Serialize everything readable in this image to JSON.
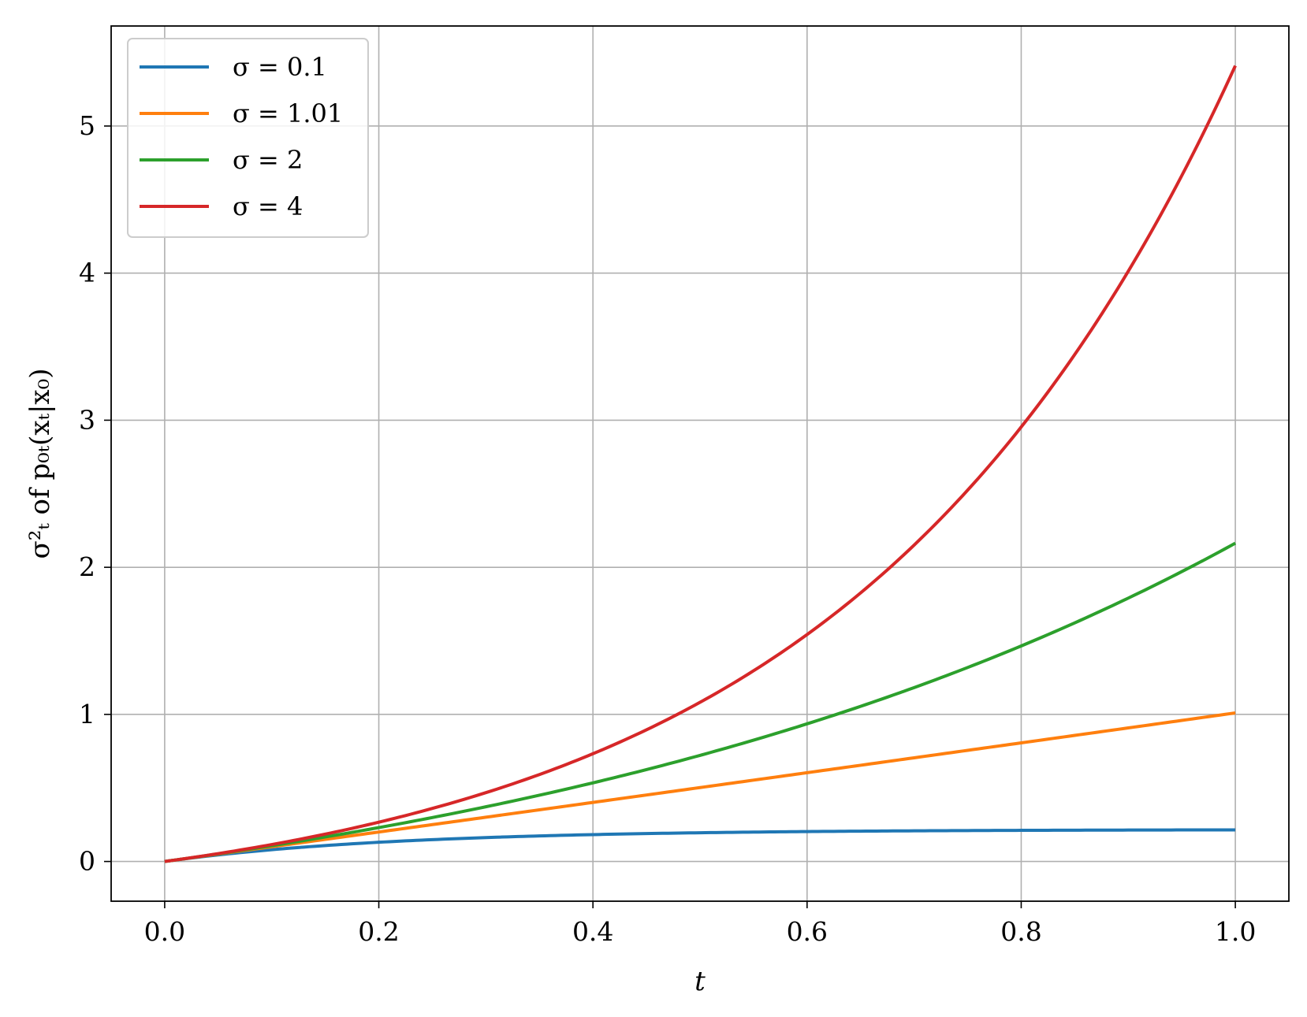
{
  "chart_data": {
    "type": "line",
    "title": "",
    "xlabel": "t",
    "ylabel": "σ²ₜ of p₀ₜ(xₜ|x₀)",
    "xlim": [
      -0.05,
      1.05
    ],
    "ylim": [
      -0.27,
      5.68
    ],
    "xticks": [
      0.0,
      0.2,
      0.4,
      0.6,
      0.8,
      1.0
    ],
    "xtick_labels": [
      "0.0",
      "0.2",
      "0.4",
      "0.6",
      "0.8",
      "1.0"
    ],
    "yticks": [
      0,
      1,
      2,
      3,
      4,
      5
    ],
    "ytick_labels": [
      "0",
      "1",
      "2",
      "3",
      "4",
      "5"
    ],
    "grid": true,
    "legend_position": "top-left",
    "series": [
      {
        "name": "σ = 0.1",
        "sigma": 0.1,
        "color": "#1f77b4"
      },
      {
        "name": "σ = 1.01",
        "sigma": 1.01,
        "color": "#ff7f0e"
      },
      {
        "name": "σ = 2",
        "sigma": 2,
        "color": "#2ca02c"
      },
      {
        "name": "σ = 4",
        "sigma": 4,
        "color": "#d62728"
      }
    ],
    "x": [
      0.0,
      0.05,
      0.1,
      0.15,
      0.2,
      0.25,
      0.3,
      0.35,
      0.4,
      0.45,
      0.5,
      0.55,
      0.6,
      0.65,
      0.7,
      0.75,
      0.8,
      0.85,
      0.9,
      0.95,
      1.0
    ]
  }
}
